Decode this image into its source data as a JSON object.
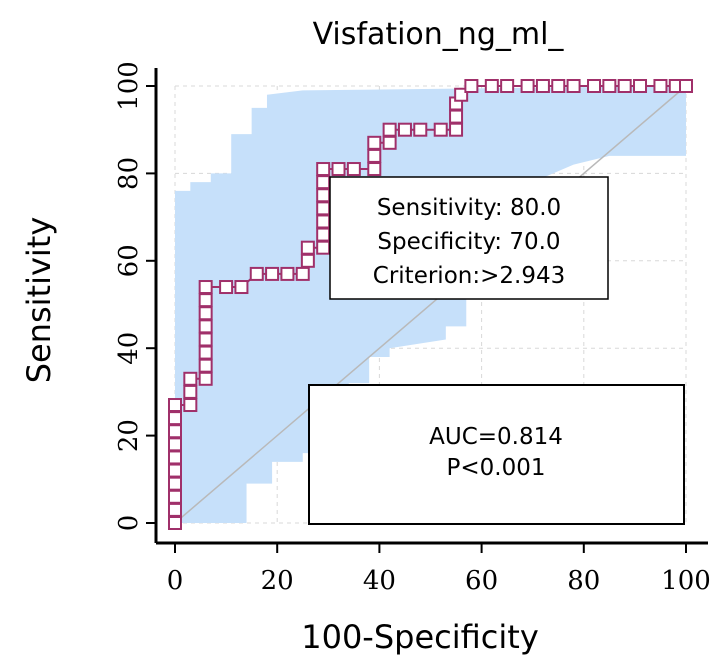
{
  "chart_data": {
    "type": "line",
    "title": "Visfation_ng_ml_",
    "xlabel": "100-Specificity",
    "ylabel": "Sensitivity",
    "xlim": [
      0,
      100
    ],
    "ylim": [
      0,
      100
    ],
    "xticks": [
      "0",
      "20",
      "40",
      "60",
      "80",
      "100"
    ],
    "yticks": [
      "0",
      "20",
      "40",
      "60",
      "80",
      "100"
    ],
    "grid": true,
    "colors": {
      "roc_marker": "#a0306a",
      "ci_band": "#c6e0fa",
      "diagonal": "#b9b9b9"
    },
    "roc_points": [
      [
        0,
        0
      ],
      [
        0,
        3
      ],
      [
        0,
        6
      ],
      [
        0,
        9
      ],
      [
        0,
        12
      ],
      [
        0,
        15
      ],
      [
        0,
        18
      ],
      [
        0,
        21
      ],
      [
        0,
        24
      ],
      [
        0,
        27
      ],
      [
        3,
        27
      ],
      [
        3,
        30
      ],
      [
        3,
        33
      ],
      [
        6,
        33
      ],
      [
        6,
        36
      ],
      [
        6,
        39
      ],
      [
        6,
        42
      ],
      [
        6,
        45
      ],
      [
        6,
        48
      ],
      [
        6,
        51
      ],
      [
        6,
        54
      ],
      [
        10,
        54
      ],
      [
        13,
        54
      ],
      [
        16,
        57
      ],
      [
        19,
        57
      ],
      [
        22,
        57
      ],
      [
        25,
        57
      ],
      [
        26,
        60
      ],
      [
        26,
        63
      ],
      [
        29,
        63
      ],
      [
        29,
        66
      ],
      [
        29,
        69
      ],
      [
        29,
        72
      ],
      [
        29,
        75
      ],
      [
        29,
        78
      ],
      [
        29,
        81
      ],
      [
        32,
        81
      ],
      [
        35,
        81
      ],
      [
        39,
        81
      ],
      [
        39,
        84
      ],
      [
        39,
        87
      ],
      [
        42,
        87
      ],
      [
        42,
        90
      ],
      [
        45,
        90
      ],
      [
        48,
        90
      ],
      [
        52,
        90
      ],
      [
        55,
        90
      ],
      [
        55,
        93
      ],
      [
        55,
        96
      ],
      [
        56,
        98
      ],
      [
        58,
        100
      ],
      [
        62,
        100
      ],
      [
        65,
        100
      ],
      [
        69,
        100
      ],
      [
        72,
        100
      ],
      [
        75,
        100
      ],
      [
        78,
        100
      ],
      [
        82,
        100
      ],
      [
        85,
        100
      ],
      [
        88,
        100
      ],
      [
        91,
        100
      ],
      [
        95,
        100
      ],
      [
        98,
        100
      ],
      [
        100,
        100
      ]
    ],
    "ci_upper": [
      [
        0,
        0
      ],
      [
        0,
        76
      ],
      [
        3,
        76
      ],
      [
        3,
        78
      ],
      [
        7,
        78
      ],
      [
        7,
        80
      ],
      [
        11,
        80
      ],
      [
        11,
        89
      ],
      [
        15,
        89
      ],
      [
        15,
        95
      ],
      [
        18,
        95
      ],
      [
        18,
        98
      ],
      [
        25,
        99
      ],
      [
        100,
        100
      ]
    ],
    "ci_lower": [
      [
        0,
        0
      ],
      [
        14,
        0
      ],
      [
        14,
        9
      ],
      [
        19,
        9
      ],
      [
        19,
        14
      ],
      [
        25,
        14
      ],
      [
        25,
        16
      ],
      [
        29,
        16
      ],
      [
        29,
        24
      ],
      [
        34,
        24
      ],
      [
        34,
        32
      ],
      [
        38,
        32
      ],
      [
        38,
        38
      ],
      [
        42,
        38
      ],
      [
        42,
        40
      ],
      [
        53,
        42
      ],
      [
        53,
        45
      ],
      [
        57,
        45
      ],
      [
        57,
        60
      ],
      [
        60,
        60
      ],
      [
        60,
        65
      ],
      [
        65,
        65
      ],
      [
        65,
        70
      ],
      [
        70,
        78
      ],
      [
        78,
        82
      ],
      [
        85,
        84
      ],
      [
        100,
        84
      ],
      [
        100,
        100
      ]
    ],
    "annotations": [
      {
        "id": "cutoff",
        "lines": [
          "Sensitivity: 80.0",
          "Specificity: 70.0",
          "Criterion:>2.943"
        ]
      },
      {
        "id": "auc",
        "lines": [
          "AUC=0.814",
          "P<0.001"
        ]
      }
    ]
  }
}
